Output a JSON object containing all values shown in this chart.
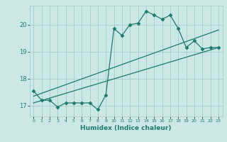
{
  "xlabel": "Humidex (Indice chaleur)",
  "ylabel": "",
  "bg_color": "#cce8e4",
  "grid_color": "#a8d0cc",
  "line_color": "#1e7a6e",
  "xlim": [
    -0.5,
    23.5
  ],
  "ylim": [
    16.6,
    20.7
  ],
  "yticks": [
    17,
    18,
    19,
    20
  ],
  "xticks": [
    0,
    1,
    2,
    3,
    4,
    5,
    6,
    7,
    8,
    9,
    10,
    11,
    12,
    13,
    14,
    15,
    16,
    17,
    18,
    19,
    20,
    21,
    22,
    23
  ],
  "main_x": [
    0,
    1,
    2,
    3,
    4,
    5,
    6,
    7,
    8,
    9,
    10,
    11,
    12,
    13,
    14,
    15,
    16,
    17,
    18,
    19,
    20,
    21,
    22,
    23
  ],
  "main_y": [
    17.55,
    17.2,
    17.2,
    16.95,
    17.1,
    17.1,
    17.1,
    17.1,
    16.85,
    17.4,
    19.85,
    19.6,
    20.0,
    20.05,
    20.5,
    20.35,
    20.2,
    20.35,
    19.85,
    19.15,
    19.4,
    19.1,
    19.15,
    19.15
  ],
  "line2_x": [
    0,
    23
  ],
  "line2_y": [
    17.1,
    19.15
  ],
  "line3_x": [
    0,
    23
  ],
  "line3_y": [
    17.35,
    19.8
  ]
}
